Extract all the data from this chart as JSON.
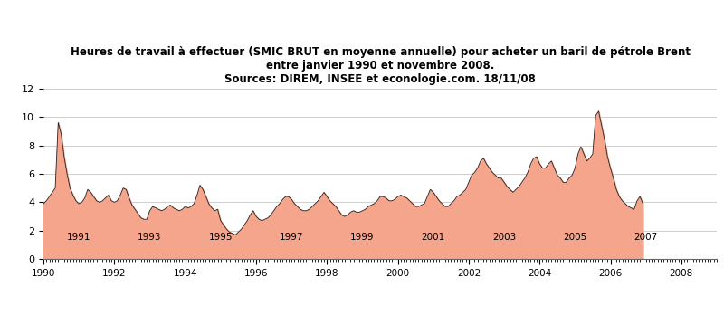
{
  "title_line1": "Heures de travail à effectuer (SMIC BRUT en moyenne annuelle) pour acheter un baril de pétrole Brent",
  "title_line2": "entre janvier 1990 et novembre 2008.",
  "title_line3": "Sources: DIREM, INSEE et econologie.com. 18/11/08",
  "fill_color": "#F5A58C",
  "line_color": "#222222",
  "background_color": "#ffffff",
  "ylim": [
    0,
    12
  ],
  "yticks": [
    0,
    2,
    4,
    6,
    8,
    10,
    12
  ],
  "x_start_year": 1990.0,
  "x_end_year": 2009.0,
  "xticks_even": [
    1990,
    1992,
    1994,
    1996,
    1998,
    2000,
    2002,
    2004,
    2006,
    2008
  ],
  "xticks_odd": [
    1991,
    1993,
    1995,
    1997,
    1999,
    2001,
    2003,
    2005,
    2007
  ],
  "values": [
    3.9,
    4.1,
    4.4,
    4.7,
    5.0,
    9.6,
    8.8,
    7.2,
    6.0,
    5.0,
    4.5,
    4.1,
    3.9,
    4.0,
    4.3,
    4.9,
    4.7,
    4.4,
    4.1,
    4.0,
    4.1,
    4.3,
    4.5,
    4.1,
    4.0,
    4.1,
    4.5,
    5.0,
    4.9,
    4.3,
    3.8,
    3.5,
    3.2,
    2.9,
    2.8,
    2.8,
    3.4,
    3.7,
    3.6,
    3.5,
    3.4,
    3.5,
    3.7,
    3.8,
    3.6,
    3.5,
    3.4,
    3.5,
    3.7,
    3.6,
    3.7,
    3.9,
    4.5,
    5.2,
    4.9,
    4.4,
    3.9,
    3.6,
    3.4,
    3.5,
    2.7,
    2.4,
    2.1,
    1.9,
    1.8,
    1.7,
    1.9,
    2.1,
    2.4,
    2.7,
    3.1,
    3.4,
    3.0,
    2.8,
    2.7,
    2.8,
    2.9,
    3.1,
    3.4,
    3.7,
    3.9,
    4.2,
    4.4,
    4.4,
    4.2,
    3.9,
    3.7,
    3.5,
    3.4,
    3.4,
    3.5,
    3.7,
    3.9,
    4.1,
    4.4,
    4.7,
    4.4,
    4.1,
    3.9,
    3.7,
    3.4,
    3.1,
    3.0,
    3.1,
    3.3,
    3.4,
    3.3,
    3.3,
    3.4,
    3.5,
    3.7,
    3.8,
    3.9,
    4.1,
    4.4,
    4.4,
    4.3,
    4.1,
    4.1,
    4.2,
    4.4,
    4.5,
    4.4,
    4.3,
    4.1,
    3.9,
    3.7,
    3.7,
    3.8,
    3.9,
    4.4,
    4.9,
    4.7,
    4.4,
    4.1,
    3.9,
    3.7,
    3.7,
    3.9,
    4.1,
    4.4,
    4.5,
    4.7,
    4.9,
    5.4,
    5.9,
    6.1,
    6.4,
    6.9,
    7.1,
    6.7,
    6.4,
    6.1,
    5.9,
    5.7,
    5.7,
    5.4,
    5.1,
    4.9,
    4.7,
    4.9,
    5.1,
    5.4,
    5.7,
    6.1,
    6.7,
    7.1,
    7.2,
    6.7,
    6.4,
    6.4,
    6.7,
    6.9,
    6.4,
    5.9,
    5.7,
    5.4,
    5.4,
    5.7,
    5.9,
    6.4,
    7.4,
    7.9,
    7.4,
    6.9,
    7.1,
    7.4,
    10.1,
    10.4,
    9.4,
    8.4,
    7.2,
    6.4,
    5.7,
    4.9,
    4.4,
    4.1,
    3.9,
    3.7,
    3.6,
    3.5,
    4.1,
    4.4,
    3.9
  ]
}
